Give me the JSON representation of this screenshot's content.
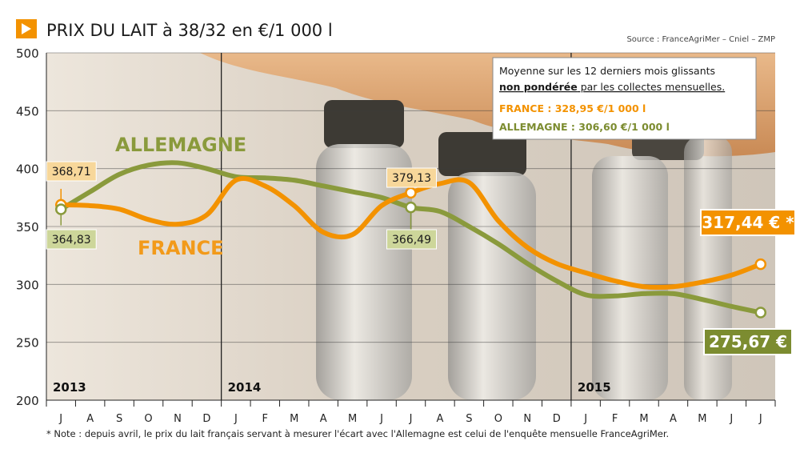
{
  "header": {
    "title": "PRIX DU LAIT à 38/32 en €/1 000 l",
    "source": "Source : FranceAgriMer – Cniel – ZMP"
  },
  "note": "* Note : depuis avril, le prix du lait français servant à mesurer l'écart avec l'Allemagne est celui de l'enquête mensuelle FranceAgriMer.",
  "info_box": {
    "line1": "Moyenne sur les 12 derniers mois glissants",
    "line2_bold": "non pondérée",
    "line2_rest": " par les collectes mensuelles.",
    "france": "FRANCE : 328,95 €/1 000 l",
    "allemagne": "ALLEMAGNE : 306,60 €/1 000 l"
  },
  "chart_data": {
    "type": "line",
    "title": "PRIX DU LAIT à 38/32 en €/1 000 l",
    "ylim": [
      200,
      500
    ],
    "yticks": [
      200,
      250,
      300,
      350,
      400,
      450,
      500
    ],
    "grid": true,
    "categories": [
      "J",
      "A",
      "S",
      "O",
      "N",
      "D",
      "J",
      "F",
      "M",
      "A",
      "M",
      "J",
      "J",
      "A",
      "S",
      "O",
      "N",
      "D",
      "J",
      "F",
      "M",
      "A",
      "M",
      "J",
      "J"
    ],
    "year_labels": [
      {
        "label": "2013",
        "index": 0
      },
      {
        "label": "2014",
        "index": 6
      },
      {
        "label": "2015",
        "index": 18
      }
    ],
    "series": [
      {
        "name": "FRANCE",
        "color": "#f39200",
        "values": [
          368.71,
          368,
          365,
          356,
          352,
          360,
          390,
          385,
          368,
          345,
          343,
          368,
          379.13,
          387,
          388,
          355,
          332,
          318,
          310,
          303,
          298,
          298,
          302,
          308,
          317.44
        ]
      },
      {
        "name": "ALLEMAGNE",
        "color": "#8a9a3c",
        "values": [
          364.83,
          380,
          395,
          403,
          405,
          400,
          393,
          392,
          390,
          385,
          380,
          375,
          366.49,
          363,
          350,
          335,
          318,
          303,
          291,
          290,
          292,
          292,
          287,
          281,
          275.67
        ]
      }
    ],
    "annotations": [
      {
        "text": "368,71",
        "series": 0,
        "index": 0
      },
      {
        "text": "364,83",
        "series": 1,
        "index": 0
      },
      {
        "text": "379,13",
        "series": 0,
        "index": 12
      },
      {
        "text": "366,49",
        "series": 1,
        "index": 12
      },
      {
        "text": "317,44 € *",
        "series": 0,
        "index": 24
      },
      {
        "text": "275,67 €",
        "series": 1,
        "index": 24
      }
    ]
  },
  "colors": {
    "france": "#f39200",
    "allemagne": "#8a9a3c",
    "allemagne_label": "#9aac3e",
    "france_label": "#f29a1a",
    "grid": "#333333"
  }
}
